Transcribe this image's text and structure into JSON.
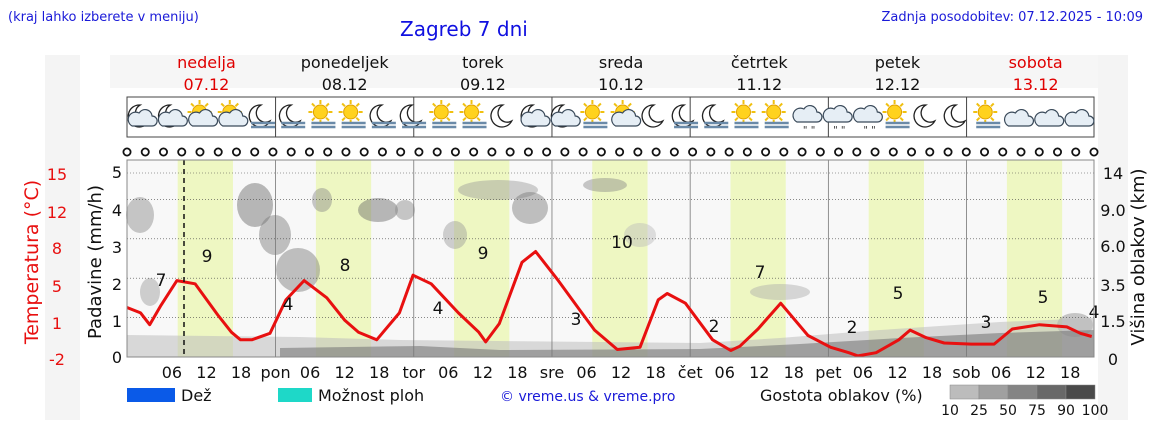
{
  "header": {
    "hint": "(kraj lahko izberete v meniju)",
    "title": "Zagreb 7 dni",
    "updated": "Zadnja posodobitev: 07.12.2025 - 10:09"
  },
  "days": [
    {
      "name": "nedelja",
      "date": "07.12",
      "weekend": true
    },
    {
      "name": "ponedeljek",
      "date": "08.12",
      "weekend": false
    },
    {
      "name": "torek",
      "date": "09.12",
      "weekend": false
    },
    {
      "name": "sreda",
      "date": "10.12",
      "weekend": false
    },
    {
      "name": "četrtek",
      "date": "11.12",
      "weekend": false
    },
    {
      "name": "petek",
      "date": "12.12",
      "weekend": false
    },
    {
      "name": "sobota",
      "date": "13.12",
      "weekend": true
    }
  ],
  "icons": [
    "moon-cloud",
    "moon-cloud",
    "sun-cloud",
    "sun-cloud",
    "moon-fog",
    "moon-fog",
    "sun-fog",
    "sun-fog",
    "moon-fog",
    "moon-fog",
    "sun-fog",
    "sun-fog",
    "moon",
    "moon-cloud",
    "moon-cloud",
    "sun-fog",
    "sun-cloud",
    "moon",
    "moon-fog",
    "moon-fog",
    "sun-fog",
    "sun-fog",
    "cloud-drizzle",
    "cloud-drizzle",
    "cloud-drizzle",
    "sun-fog",
    "moon",
    "moon",
    "sun-fog",
    "cloud",
    "cloud",
    "cloud"
  ],
  "colors": {
    "temperature": "#e81010",
    "rain": "#0a5ae8",
    "showers": "#1ed8c8",
    "daylight_band": "#eef7c2",
    "plot_bg": "#f8f8f8",
    "sunday_text": "#e00000",
    "title": "#1010e0"
  },
  "legend": {
    "rain": "Dež",
    "showers": "Možnost ploh",
    "credit": "© vreme.us & vreme.pro",
    "cloud_density": "Gostota oblakov (%)",
    "cloud_scale": [
      "10",
      "25",
      "50",
      "75",
      "90",
      "100"
    ]
  },
  "chart_data": {
    "type": "line",
    "title": "Zagreb 7 dni",
    "x_ticks": [
      "06",
      "12",
      "18",
      "pon",
      "06",
      "12",
      "18",
      "tor",
      "06",
      "12",
      "18",
      "sre",
      "06",
      "12",
      "18",
      "čet",
      "06",
      "12",
      "18",
      "pet",
      "06",
      "12",
      "18",
      "sob",
      "06",
      "12",
      "18"
    ],
    "y_left_precip": {
      "label": "Padavine (mm/h)",
      "ticks": [
        "0",
        "1",
        "2",
        "3",
        "4",
        "5"
      ],
      "ylim": [
        0,
        5
      ]
    },
    "y_left_temp": {
      "label": "Temperatura (°C)",
      "ticks": [
        "-2",
        "1",
        "5",
        "8",
        "12",
        "15"
      ],
      "ylim": [
        -2,
        15
      ]
    },
    "y_right_cloud": {
      "label": "Višina oblakov (km)",
      "ticks": [
        "0",
        "1.5",
        "3.5",
        "6.0",
        "9.0",
        "14"
      ]
    },
    "current_time": "07.12 10:09",
    "series": [
      {
        "name": "Temperatura (°C)",
        "x_hours": [
          0,
          6,
          10,
          15,
          22,
          30,
          40,
          46,
          50,
          55,
          63,
          70,
          78,
          88,
          96,
          102,
          110,
          120,
          126,
          134,
          146,
          155,
          158,
          164,
          174,
          180,
          190,
          200,
          206,
          216,
          226,
          234,
          238,
          246,
          258,
          266,
          270,
          278,
          288,
          300,
          310,
          318,
          322,
          330,
          340,
          345,
          352,
          360,
          372,
          382,
          390,
          396,
          402,
          414,
          420,
          425
        ],
        "values": [
          2.6,
          2.1,
          1.0,
          2.8,
          5.1,
          4.8,
          1.9,
          0.3,
          -0.4,
          -0.4,
          0.2,
          3.3,
          5.1,
          3.5,
          1.4,
          0.3,
          -0.4,
          2.1,
          5.6,
          4.8,
          2.1,
          0.3,
          -0.6,
          1.1,
          6.8,
          7.8,
          5.1,
          2.2,
          0.5,
          -1.3,
          -1.1,
          3.3,
          3.9,
          3.0,
          -0.4,
          -1.4,
          -1.0,
          0.6,
          3.0,
          0.0,
          -1.1,
          -1.6,
          -1.9,
          -1.6,
          -0.4,
          0.5,
          -0.2,
          -0.7,
          -0.8,
          -0.8,
          0.6,
          0.8,
          1.0,
          0.8,
          0.2,
          -0.1
        ]
      }
    ],
    "temp_labels": [
      {
        "x": 2,
        "value": "7"
      },
      {
        "x": 4,
        "value": "9"
      },
      {
        "x": 7,
        "value": "4"
      },
      {
        "x": 8,
        "value": "8"
      },
      {
        "x": 12,
        "value": "4"
      },
      {
        "x": 14,
        "value": "9"
      },
      {
        "x": 18,
        "value": "3"
      },
      {
        "x": 19,
        "value": "10"
      },
      {
        "x": 23,
        "value": "2"
      },
      {
        "x": 25,
        "value": "7"
      },
      {
        "x": 28,
        "value": "2"
      },
      {
        "x": 30,
        "value": "5"
      },
      {
        "x": 33,
        "value": "3"
      },
      {
        "x": 35,
        "value": "5"
      },
      {
        "x": 37,
        "value": "4"
      }
    ]
  }
}
